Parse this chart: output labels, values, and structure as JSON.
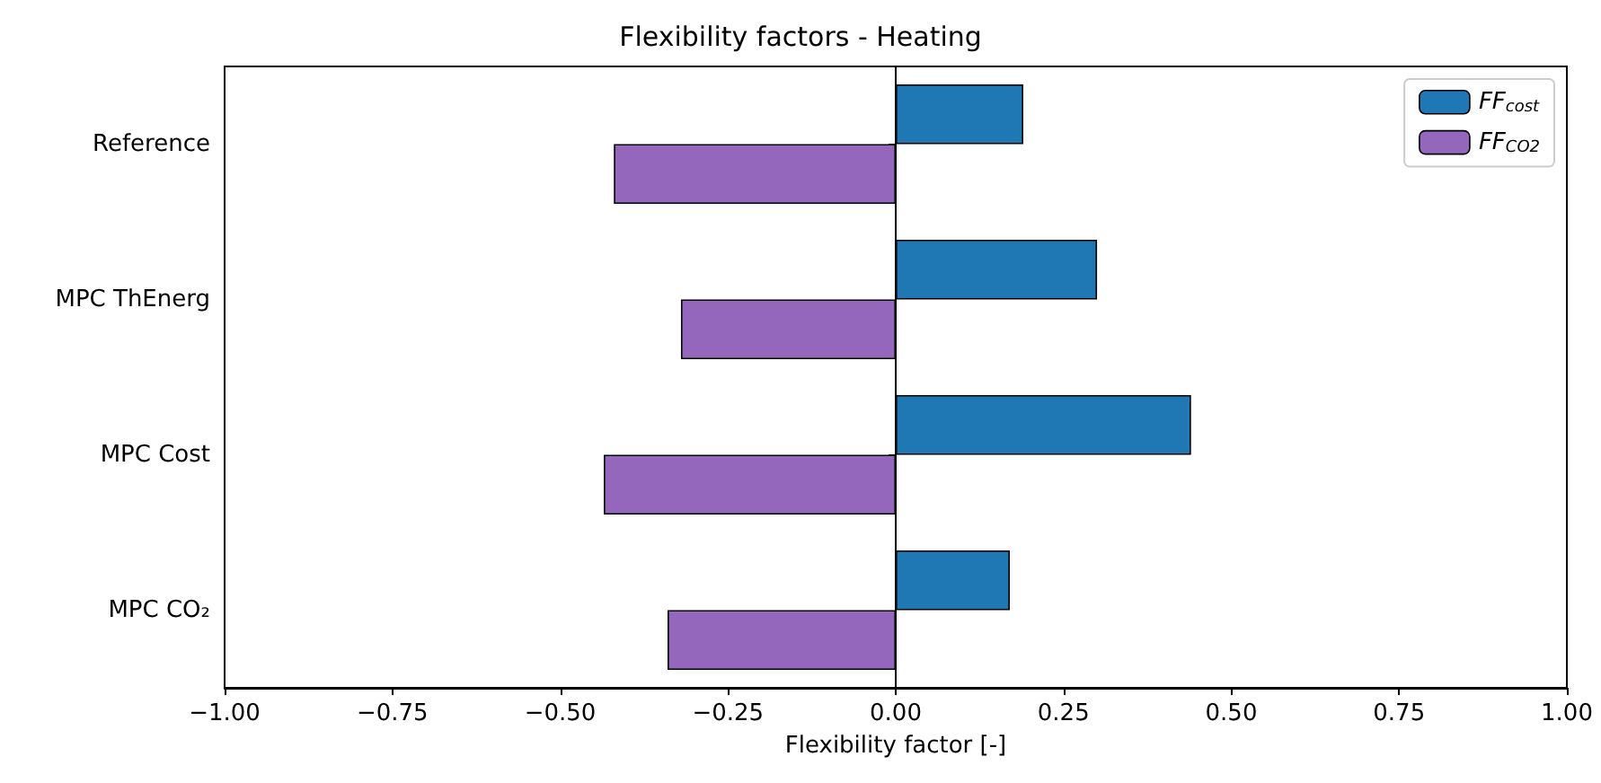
{
  "chart_data": {
    "type": "bar",
    "orientation": "horizontal",
    "title": "Flexibility factors - Heating",
    "xlabel": "Flexibility factor [-]",
    "categories": [
      "Reference",
      "MPC ThEnerg",
      "MPC Cost",
      "MPC CO₂"
    ],
    "series": [
      {
        "name": "FF$_{cost}$",
        "color": "#1f77b4",
        "values": [
          0.19,
          0.3,
          0.44,
          0.17
        ]
      },
      {
        "name": "FF$_{CO2}$",
        "color": "#9467bd",
        "values": [
          -0.42,
          -0.32,
          -0.435,
          -0.34
        ]
      }
    ],
    "xlim": [
      -1,
      1
    ],
    "xticks": [
      {
        "value": -1,
        "label": "−1.00"
      },
      {
        "value": -0.75,
        "label": "−0.75"
      },
      {
        "value": -0.5,
        "label": "−0.50"
      },
      {
        "value": -0.25,
        "label": "−0.25"
      },
      {
        "value": 0,
        "label": "0.00"
      },
      {
        "value": 0.25,
        "label": "0.25"
      },
      {
        "value": 0.5,
        "label": "0.50"
      },
      {
        "value": 0.75,
        "label": "0.75"
      },
      {
        "value": 1,
        "label": "1.00"
      }
    ],
    "ref_lines": [
      {
        "axis": "x",
        "value": 0,
        "color": "#000000"
      }
    ],
    "grid": false,
    "legend": "top right"
  }
}
